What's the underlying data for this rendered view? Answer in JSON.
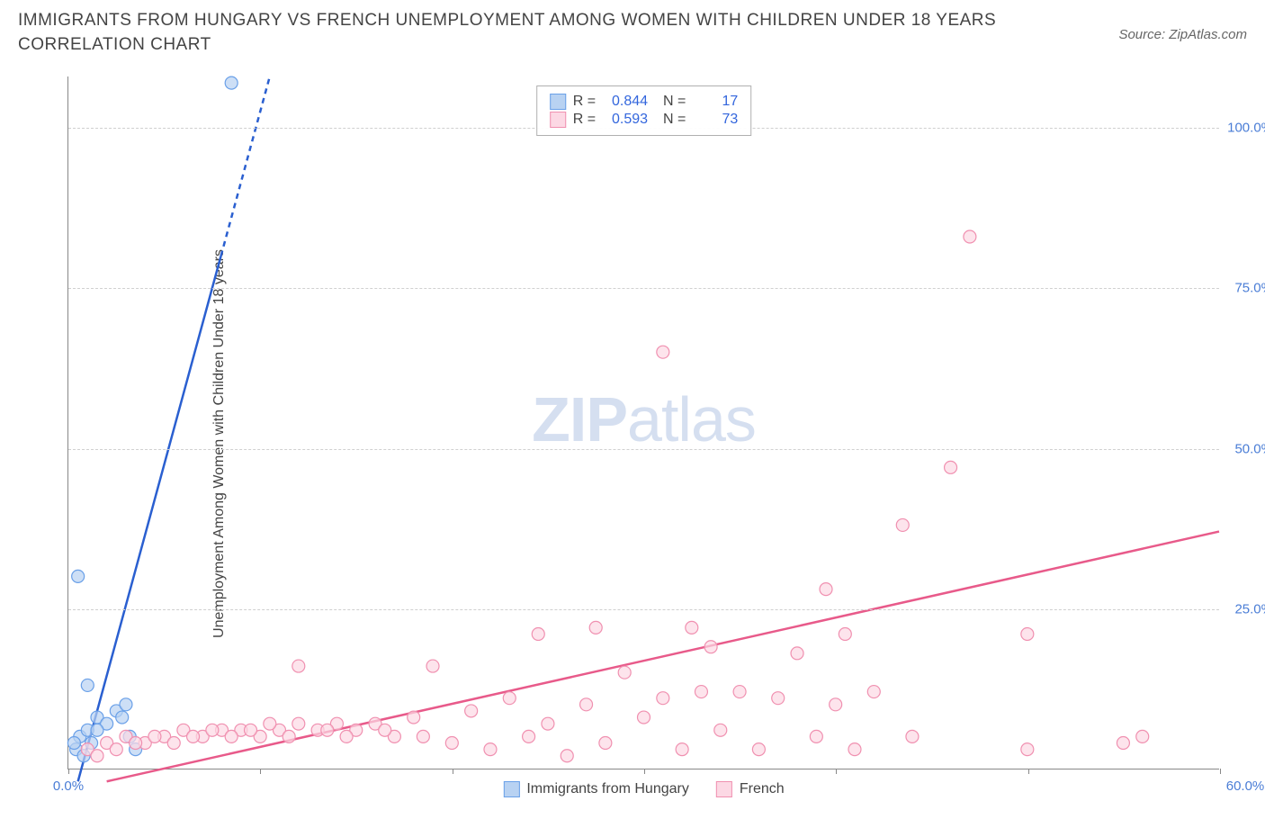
{
  "title": "IMMIGRANTS FROM HUNGARY VS FRENCH UNEMPLOYMENT AMONG WOMEN WITH CHILDREN UNDER 18 YEARS CORRELATION CHART",
  "source": "Source: ZipAtlas.com",
  "y_axis_label": "Unemployment Among Women with Children Under 18 years",
  "watermark": {
    "bold": "ZIP",
    "light": "atlas"
  },
  "chart": {
    "type": "scatter",
    "xlim": [
      0,
      60
    ],
    "ylim": [
      0,
      108
    ],
    "xticks": [
      0,
      10,
      20,
      30,
      40,
      50,
      60
    ],
    "xticks_labeled": {
      "0": "0.0%",
      "60": "60.0%"
    },
    "yticks": [
      25,
      50,
      75,
      100
    ],
    "ytick_labels": [
      "25.0%",
      "50.0%",
      "75.0%",
      "100.0%"
    ],
    "background_color": "#ffffff",
    "grid_color": "#d0d0d0",
    "axis_color": "#888888",
    "tick_label_color": "#4a7dd6",
    "marker_radius": 7,
    "line_width": 2.5,
    "series": [
      {
        "name": "Immigrants from Hungary",
        "color_stroke": "#6aa0e8",
        "color_fill": "#b8d2f2",
        "line_color": "#2a5fd0",
        "R": "0.844",
        "N": "17",
        "trend": {
          "x1": 0.5,
          "y1": -2,
          "x2": 10.5,
          "y2": 108,
          "dashed_from_y": 80
        },
        "points": [
          [
            0.4,
            3
          ],
          [
            0.6,
            5
          ],
          [
            0.8,
            2
          ],
          [
            1.0,
            6
          ],
          [
            1.2,
            4
          ],
          [
            1.5,
            8
          ],
          [
            2.0,
            7
          ],
          [
            2.5,
            9
          ],
          [
            3.0,
            10
          ],
          [
            0.5,
            30
          ],
          [
            1.0,
            13
          ],
          [
            1.5,
            6
          ],
          [
            2.8,
            8
          ],
          [
            3.2,
            5
          ],
          [
            3.5,
            3
          ],
          [
            0.3,
            4
          ],
          [
            8.5,
            107
          ]
        ]
      },
      {
        "name": "French",
        "color_stroke": "#f090b0",
        "color_fill": "#fcd8e4",
        "line_color": "#e85a8a",
        "R": "0.593",
        "N": "73",
        "trend": {
          "x1": 2,
          "y1": -2,
          "x2": 60,
          "y2": 37
        },
        "points": [
          [
            1,
            3
          ],
          [
            2,
            4
          ],
          [
            3,
            5
          ],
          [
            4,
            4
          ],
          [
            5,
            5
          ],
          [
            6,
            6
          ],
          [
            7,
            5
          ],
          [
            8,
            6
          ],
          [
            9,
            6
          ],
          [
            10,
            5
          ],
          [
            11,
            6
          ],
          [
            12,
            7
          ],
          [
            13,
            6
          ],
          [
            14,
            7
          ],
          [
            15,
            6
          ],
          [
            16,
            7
          ],
          [
            17,
            5
          ],
          [
            18,
            8
          ],
          [
            19,
            16
          ],
          [
            20,
            4
          ],
          [
            21,
            9
          ],
          [
            22,
            3
          ],
          [
            23,
            11
          ],
          [
            24,
            5
          ],
          [
            24.5,
            21
          ],
          [
            25,
            7
          ],
          [
            26,
            2
          ],
          [
            27,
            10
          ],
          [
            27.5,
            22
          ],
          [
            28,
            4
          ],
          [
            29,
            15
          ],
          [
            30,
            8
          ],
          [
            31,
            65
          ],
          [
            31,
            11
          ],
          [
            32,
            3
          ],
          [
            32.5,
            22
          ],
          [
            33,
            12
          ],
          [
            33.5,
            19
          ],
          [
            34,
            6
          ],
          [
            35,
            12
          ],
          [
            36,
            3
          ],
          [
            37,
            11
          ],
          [
            38,
            18
          ],
          [
            39,
            5
          ],
          [
            39.5,
            28
          ],
          [
            40,
            10
          ],
          [
            40.5,
            21
          ],
          [
            41,
            3
          ],
          [
            42,
            12
          ],
          [
            43.5,
            38
          ],
          [
            44,
            5
          ],
          [
            46,
            47
          ],
          [
            47,
            83
          ],
          [
            50,
            3
          ],
          [
            50,
            21
          ],
          [
            55,
            4
          ],
          [
            56,
            5
          ],
          [
            12,
            16
          ],
          [
            1.5,
            2
          ],
          [
            2.5,
            3
          ],
          [
            3.5,
            4
          ],
          [
            4.5,
            5
          ],
          [
            5.5,
            4
          ],
          [
            6.5,
            5
          ],
          [
            7.5,
            6
          ],
          [
            8.5,
            5
          ],
          [
            9.5,
            6
          ],
          [
            10.5,
            7
          ],
          [
            11.5,
            5
          ],
          [
            13.5,
            6
          ],
          [
            14.5,
            5
          ],
          [
            16.5,
            6
          ],
          [
            18.5,
            5
          ]
        ]
      }
    ]
  },
  "legend_bottom": [
    {
      "label": "Immigrants from Hungary",
      "fill": "#b8d2f2",
      "stroke": "#6aa0e8"
    },
    {
      "label": "French",
      "fill": "#fcd8e4",
      "stroke": "#f090b0"
    }
  ]
}
